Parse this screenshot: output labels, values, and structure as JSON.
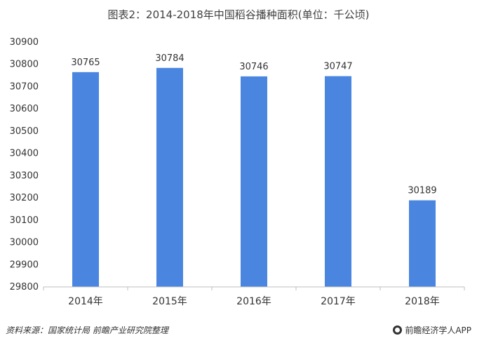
{
  "chart_data": {
    "type": "bar",
    "title": "图表2：2014-2018年中国稻谷播种面积(单位：千公顷)",
    "categories": [
      "2014年",
      "2015年",
      "2016年",
      "2017年",
      "2018年"
    ],
    "values": [
      30765,
      30784,
      30746,
      30747,
      30189
    ],
    "yticks": [
      29800,
      29900,
      30000,
      30100,
      30200,
      30300,
      30400,
      30500,
      30600,
      30700,
      30800,
      30900
    ],
    "ylim": [
      29800,
      30900
    ],
    "xlabel": "",
    "ylabel": "",
    "grid": false,
    "bar_color": "#4a86e0"
  },
  "footer": {
    "source": "资料来源：国家统计局 前瞻产业研究院整理",
    "brand": "前瞻经济学人APP"
  }
}
